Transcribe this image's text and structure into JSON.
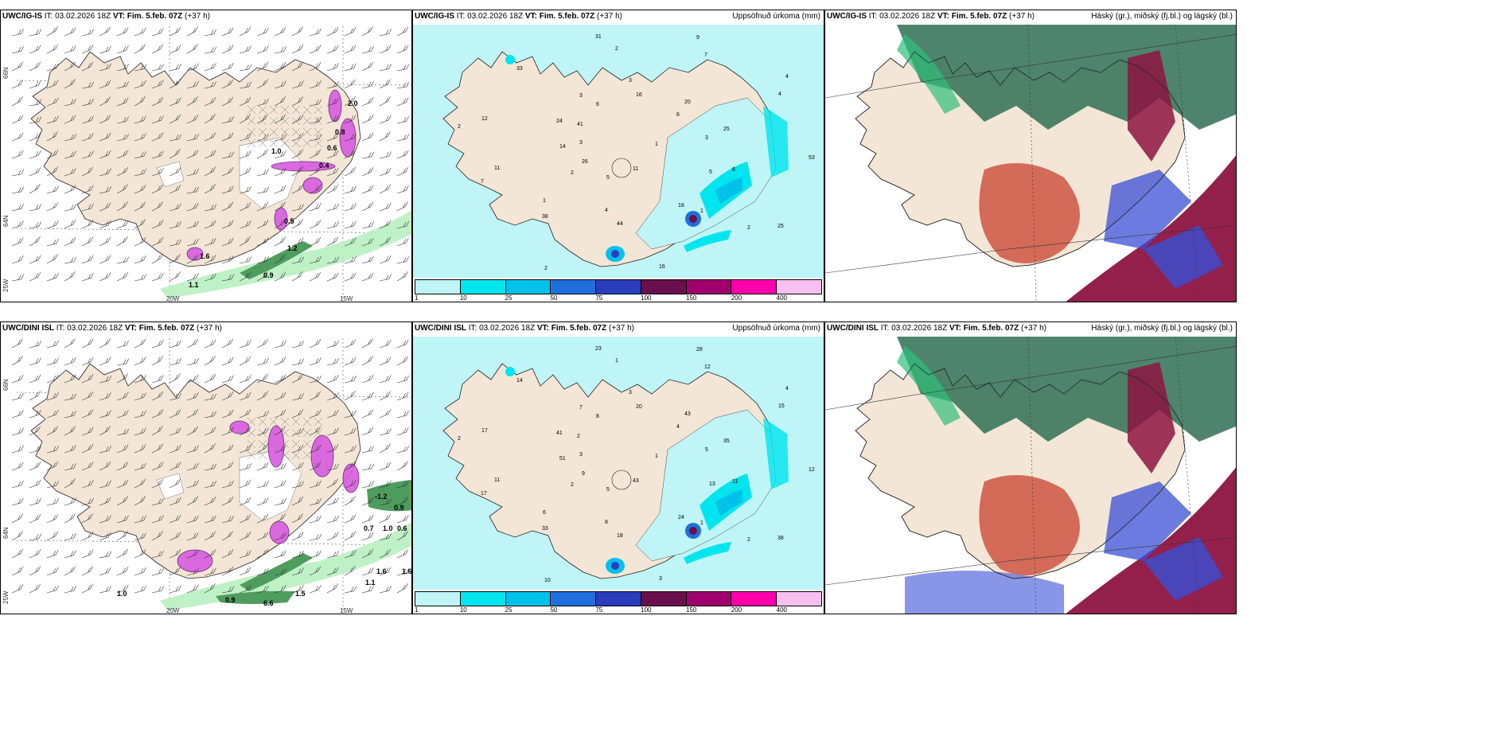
{
  "colors": {
    "land": "#f4e6d6",
    "sea_precip": "#bff5f7",
    "precip_10": "#00e5ee",
    "precip_25": "#00c1ea",
    "precip_50": "#1e6fdc",
    "precip_75": "#2a3dbd",
    "precip_100": "#6a0f4d",
    "precip_150": "#a0006e",
    "precip_200": "#ff00aa",
    "precip_400": "#f7c0f0",
    "magenta": "#d85be0",
    "green": "#4f9d5e",
    "green_light": "#b8f0c0",
    "cloud_low": "#2f6e55",
    "cloud_mid": "#3a4fd6",
    "cloud_high": "#8d1441",
    "cloud_red": "#c8412e"
  },
  "rows": [
    {
      "model": "UWC/IG-IS",
      "it": "IT: 03.02.2026 18Z",
      "vt": "VT: Fim. 5.feb. 07Z",
      "lead": "(+37 h)",
      "precip_title": "Uppsöfnuð úrkoma (mm)",
      "cloud_title": "Háský (gr.), miðský (fj.bl.) og lágský (bl.)",
      "wind_values": [
        "0.9",
        "1.1",
        "1.2",
        "0.8",
        "0.6",
        "0.4",
        "1.0",
        "2.0",
        "1.6",
        "0.5"
      ],
      "precip_values": [
        "1",
        "2",
        "3",
        "1",
        "2",
        "4",
        "5",
        "3",
        "6",
        "7",
        "9",
        "11",
        "24",
        "25",
        "38",
        "31",
        "25",
        "14",
        "20",
        "44",
        "33",
        "53",
        "26",
        "16",
        "18",
        "12",
        "4",
        "2",
        "6",
        "5",
        "11",
        "7",
        "16",
        "41",
        "3",
        "1",
        "2",
        "2",
        "3",
        "6",
        "4"
      ]
    },
    {
      "model": "UWC/DINI ISL",
      "it": "IT: 03.02.2026 18Z",
      "vt": "VT: Fim. 5.feb. 07Z",
      "lead": "(+37 h)",
      "precip_title": "Uppsöfnuð úrkoma (mm)",
      "cloud_title": "Háský (gr.), miðský (fj.bl.) og lágský (bl.)",
      "wind_values": [
        "-1.2",
        "0.9",
        "0.7",
        "1.0",
        "0.6",
        "1.6",
        "1.1",
        "1.0",
        "0.9",
        "1.5",
        "1.6",
        "6.6"
      ],
      "precip_values": [
        "1",
        "2",
        "3",
        "1",
        "2",
        "4",
        "5",
        "7",
        "11",
        "17",
        "28",
        "43",
        "41",
        "35",
        "33",
        "23",
        "38",
        "51",
        "43",
        "18",
        "14",
        "12",
        "9",
        "20",
        "24",
        "17",
        "15",
        "10",
        "8",
        "13",
        "11",
        "12",
        "3",
        "2",
        "5",
        "6",
        "1",
        "2",
        "3",
        "4",
        "8"
      ]
    }
  ],
  "legend": {
    "ticks": [
      "1",
      "10",
      "25",
      "50",
      "75",
      "100",
      "150",
      "200",
      "400"
    ]
  },
  "axes": {
    "lat_66": "66N",
    "lat_64": "64N",
    "lon_25": "25W",
    "lon_20": "20W",
    "lon_15": "15W"
  }
}
